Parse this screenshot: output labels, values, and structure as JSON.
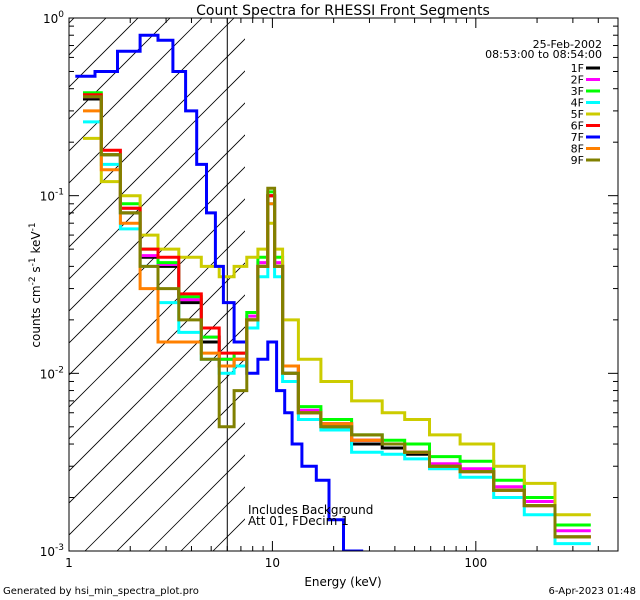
{
  "chart_data": {
    "type": "line",
    "title": "Count Spectra for RHESSI Front Segments",
    "xlabel": "Energy (keV)",
    "ylabel_parts": {
      "main": "counts cm",
      "exp1": "-2",
      "s": " s",
      "exp2": "-1",
      "kev": " keV",
      "exp3": "-1"
    },
    "xscale": "log",
    "yscale": "log",
    "xlim": [
      1,
      500
    ],
    "ylim": [
      0.001,
      1
    ],
    "x_tick_labels": [
      {
        "v": 1,
        "label": "1"
      },
      {
        "v": 10,
        "label": "10"
      },
      {
        "v": 100,
        "label": "100"
      }
    ],
    "y_tick_labels": [
      {
        "v": 1,
        "base": "10",
        "exp": "0"
      },
      {
        "v": 0.1,
        "base": "10",
        "exp": "-1"
      },
      {
        "v": 0.01,
        "base": "10",
        "exp": "-2"
      },
      {
        "v": 0.001,
        "base": "10",
        "exp": "-3"
      }
    ],
    "date": "25-Feb-2002",
    "time_range": "08:53:00 to 08:54:00",
    "shaded_region_upper_kev": 6,
    "annotations": [
      "Includes Background",
      "Att 01, FDecim 1"
    ],
    "legend_position": "top-right",
    "series": [
      {
        "name": "1F",
        "color": "#000000",
        "x": [
          1.3,
          1.6,
          2.0,
          2.5,
          3.0,
          4.0,
          5.0,
          6.0,
          7.0,
          8.0,
          9.0,
          10.0,
          10.5,
          12,
          15,
          20,
          30,
          40,
          50,
          70,
          100,
          150,
          200,
          300
        ],
        "values": [
          0.35,
          0.17,
          0.08,
          0.045,
          0.04,
          0.025,
          0.015,
          0.011,
          0.012,
          0.02,
          0.04,
          0.1,
          0.04,
          0.01,
          0.006,
          0.005,
          0.004,
          0.0038,
          0.0035,
          0.003,
          0.0028,
          0.0022,
          0.0018,
          0.0012
        ]
      },
      {
        "name": "2F",
        "color": "#ff00ff",
        "x": [
          1.3,
          1.6,
          2.0,
          2.5,
          3.0,
          4.0,
          5.0,
          6.0,
          7.0,
          8.0,
          9.0,
          10.0,
          10.5,
          12,
          15,
          20,
          30,
          40,
          50,
          70,
          100,
          150,
          200,
          300
        ],
        "values": [
          0.36,
          0.17,
          0.085,
          0.046,
          0.041,
          0.026,
          0.016,
          0.012,
          0.013,
          0.021,
          0.042,
          0.1,
          0.042,
          0.011,
          0.0062,
          0.0052,
          0.0042,
          0.004,
          0.0036,
          0.0031,
          0.0029,
          0.0023,
          0.0019,
          0.0013
        ]
      },
      {
        "name": "3F",
        "color": "#00ff00",
        "x": [
          1.3,
          1.6,
          2.0,
          2.5,
          3.0,
          4.0,
          5.0,
          6.0,
          7.0,
          8.0,
          9.0,
          10.0,
          10.5,
          12,
          15,
          20,
          30,
          40,
          50,
          70,
          100,
          150,
          200,
          300
        ],
        "values": [
          0.38,
          0.17,
          0.09,
          0.05,
          0.042,
          0.027,
          0.016,
          0.012,
          0.013,
          0.022,
          0.045,
          0.105,
          0.045,
          0.011,
          0.0065,
          0.0055,
          0.0045,
          0.0042,
          0.004,
          0.0034,
          0.0032,
          0.0025,
          0.002,
          0.0014
        ]
      },
      {
        "name": "4F",
        "color": "#00ffff",
        "x": [
          1.3,
          1.6,
          2.0,
          2.5,
          3.0,
          4.0,
          5.0,
          6.0,
          7.0,
          8.0,
          9.0,
          10.0,
          10.5,
          12,
          15,
          20,
          30,
          40,
          50,
          70,
          100,
          150,
          200,
          300
        ],
        "values": [
          0.26,
          0.15,
          0.065,
          0.04,
          0.025,
          0.017,
          0.012,
          0.01,
          0.011,
          0.018,
          0.035,
          0.09,
          0.035,
          0.009,
          0.0055,
          0.0048,
          0.0036,
          0.0035,
          0.0033,
          0.0029,
          0.0026,
          0.002,
          0.0016,
          0.0011
        ]
      },
      {
        "name": "5F",
        "color": "#cccc00",
        "x": [
          1.3,
          1.6,
          2.0,
          2.5,
          3.0,
          4.0,
          5.0,
          6.0,
          7.0,
          8.0,
          9.0,
          10.0,
          10.5,
          12,
          15,
          20,
          30,
          40,
          50,
          70,
          100,
          150,
          200,
          300
        ],
        "values": [
          0.21,
          0.12,
          0.1,
          0.06,
          0.05,
          0.045,
          0.04,
          0.035,
          0.04,
          0.045,
          0.05,
          0.07,
          0.05,
          0.02,
          0.012,
          0.009,
          0.007,
          0.006,
          0.0055,
          0.0045,
          0.004,
          0.003,
          0.0024,
          0.0016
        ]
      },
      {
        "name": "6F",
        "color": "#ff0000",
        "x": [
          1.3,
          1.6,
          2.0,
          2.5,
          3.0,
          4.0,
          5.0,
          6.0,
          7.0,
          8.0,
          9.0,
          10.0,
          10.5,
          12,
          15,
          20,
          30,
          40,
          50,
          70,
          100,
          150,
          200,
          300
        ],
        "values": [
          0.37,
          0.18,
          0.085,
          0.05,
          0.045,
          0.028,
          0.018,
          0.013,
          0.013,
          0.02,
          0.04,
          0.1,
          0.04,
          0.011,
          0.006,
          0.0052,
          0.0042,
          0.004,
          0.0036,
          0.003,
          0.0028,
          0.0022,
          0.0018,
          0.0012
        ]
      },
      {
        "name": "7F",
        "color": "#0000ff",
        "x": [
          1.2,
          1.5,
          2.0,
          2.5,
          3.0,
          3.5,
          4.0,
          4.5,
          5.0,
          5.5,
          6.0,
          7.0,
          8.0,
          9.0,
          10.0,
          11.0,
          12.0,
          13.0,
          15.0,
          18.0,
          20.0,
          25.0
        ],
        "values": [
          0.47,
          0.5,
          0.65,
          0.8,
          0.75,
          0.5,
          0.3,
          0.15,
          0.08,
          0.04,
          0.025,
          0.015,
          0.01,
          0.012,
          0.015,
          0.008,
          0.006,
          0.004,
          0.003,
          0.0025,
          0.0015,
          0.001
        ]
      },
      {
        "name": "8F",
        "color": "#ff8000",
        "x": [
          1.3,
          1.6,
          2.0,
          2.5,
          3.0,
          4.0,
          5.0,
          6.0,
          7.0,
          8.0,
          9.0,
          10.0,
          10.5,
          12,
          15,
          20,
          30,
          40,
          50,
          70,
          100,
          150,
          200,
          300
        ],
        "values": [
          0.3,
          0.14,
          0.07,
          0.03,
          0.015,
          0.015,
          0.013,
          0.011,
          0.012,
          0.02,
          0.04,
          0.09,
          0.04,
          0.011,
          0.006,
          0.0052,
          0.0042,
          0.004,
          0.0036,
          0.003,
          0.0028,
          0.0022,
          0.0018,
          0.0012
        ]
      },
      {
        "name": "9F",
        "color": "#808000",
        "x": [
          1.3,
          1.6,
          2.0,
          2.5,
          3.0,
          4.0,
          5.0,
          6.0,
          7.0,
          8.0,
          9.0,
          10.0,
          10.5,
          12,
          15,
          20,
          30,
          40,
          50,
          70,
          100,
          150,
          200,
          300
        ],
        "values": [
          0.36,
          0.17,
          0.08,
          0.04,
          0.03,
          0.02,
          0.012,
          0.005,
          0.008,
          0.02,
          0.04,
          0.11,
          0.04,
          0.01,
          0.006,
          0.005,
          0.0045,
          0.004,
          0.0036,
          0.003,
          0.0028,
          0.0022,
          0.0018,
          0.0012
        ]
      }
    ]
  },
  "footer": {
    "left": "Generated by hsi_min_spectra_plot.pro",
    "right": "6-Apr-2023 01:48"
  }
}
